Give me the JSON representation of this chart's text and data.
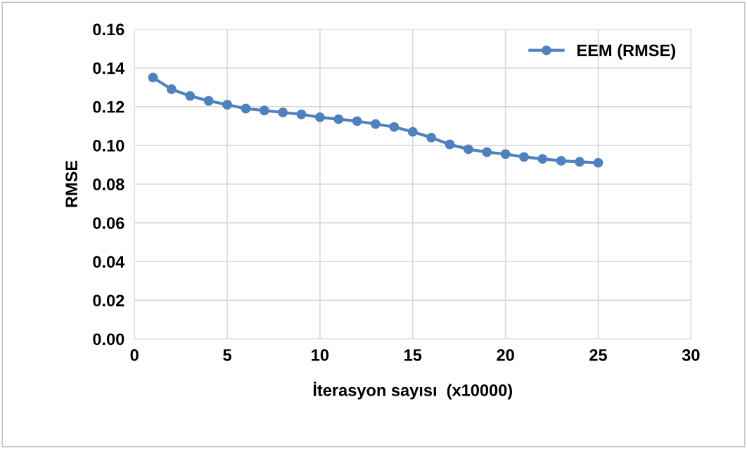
{
  "chart_data": {
    "type": "line",
    "xlabel": "İterasyon sayısı  (x10000)",
    "ylabel": "RMSE",
    "x": [
      1,
      2,
      3,
      4,
      5,
      6,
      7,
      8,
      9,
      10,
      11,
      12,
      13,
      14,
      15,
      16,
      17,
      18,
      19,
      20,
      21,
      22,
      23,
      24,
      25
    ],
    "series": [
      {
        "name": "EEM (RMSE)",
        "color": "#4f81bd",
        "values": [
          0.135,
          0.129,
          0.1255,
          0.123,
          0.121,
          0.119,
          0.118,
          0.117,
          0.116,
          0.1145,
          0.1135,
          0.1125,
          0.111,
          0.1095,
          0.107,
          0.104,
          0.1005,
          0.098,
          0.0965,
          0.0955,
          0.094,
          0.093,
          0.092,
          0.0915,
          0.091
        ]
      }
    ],
    "xlim": [
      0,
      30
    ],
    "xticks": [
      0,
      5,
      10,
      15,
      20,
      25,
      30
    ],
    "ylim": [
      0,
      0.16
    ],
    "yticks": [
      {
        "value": 0,
        "label": "0.00"
      },
      {
        "value": 0.02,
        "label": "0.02"
      },
      {
        "value": 0.04,
        "label": "0.04"
      },
      {
        "value": 0.06,
        "label": "0.06"
      },
      {
        "value": 0.08,
        "label": "0.08"
      },
      {
        "value": 0.1,
        "label": "0.10"
      },
      {
        "value": 0.12,
        "label": "0.12"
      },
      {
        "value": 0.14,
        "label": "0.14"
      },
      {
        "value": 0.16,
        "label": "0.16"
      }
    ],
    "grid": true,
    "legend": "top right",
    "marker": "circle",
    "line_style": "solid"
  }
}
